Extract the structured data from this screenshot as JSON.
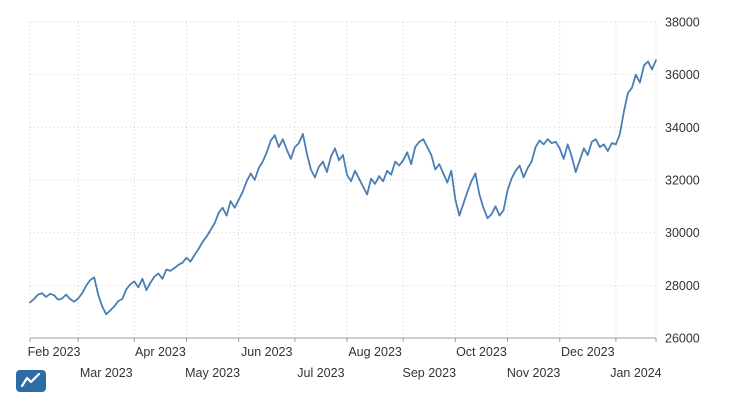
{
  "chart_data": {
    "type": "line",
    "title": "",
    "xlabel": "",
    "ylabel": "",
    "grid": "dotted",
    "legend_position": "none",
    "ylim": [
      26000,
      38000
    ],
    "y_ticks": [
      26000,
      28000,
      30000,
      32000,
      34000,
      36000,
      38000
    ],
    "x_categories_months": [
      "Feb 2023",
      "Mar 2023",
      "Apr 2023",
      "May 2023",
      "Jun 2023",
      "Jul 2023",
      "Aug 2023",
      "Sep 2023",
      "Oct 2023",
      "Nov 2023",
      "Dec 2023",
      "Jan 2024"
    ],
    "x_label_rows": [
      1,
      2,
      1,
      2,
      1,
      2,
      1,
      2,
      1,
      2,
      1,
      2
    ],
    "month_point_offsets": [
      0,
      12,
      26,
      39,
      52,
      66,
      79,
      93,
      106,
      119,
      132,
      146
    ],
    "values": [
      27350,
      27480,
      27650,
      27700,
      27560,
      27680,
      27620,
      27460,
      27500,
      27650,
      27480,
      27380,
      27500,
      27700,
      27990,
      28200,
      28300,
      27650,
      27200,
      26900,
      27050,
      27200,
      27400,
      27480,
      27850,
      28040,
      28150,
      27920,
      28250,
      27820,
      28100,
      28330,
      28450,
      28250,
      28600,
      28550,
      28660,
      28780,
      28860,
      29050,
      28900,
      29150,
      29380,
      29650,
      29850,
      30100,
      30350,
      30750,
      30950,
      30650,
      31200,
      30950,
      31250,
      31550,
      31950,
      32250,
      32000,
      32450,
      32700,
      33050,
      33500,
      33700,
      33250,
      33550,
      33150,
      32800,
      33250,
      33400,
      33750,
      33000,
      32400,
      32100,
      32500,
      32700,
      32300,
      32900,
      33200,
      32750,
      32950,
      32200,
      31950,
      32350,
      32050,
      31750,
      31450,
      32050,
      31850,
      32150,
      31950,
      32350,
      32200,
      32700,
      32550,
      32750,
      33050,
      32600,
      33250,
      33450,
      33550,
      33250,
      32950,
      32400,
      32600,
      32250,
      31900,
      32350,
      31250,
      30650,
      31100,
      31550,
      31950,
      32250,
      31450,
      30950,
      30550,
      30700,
      31000,
      30650,
      30850,
      31600,
      32050,
      32350,
      32550,
      32100,
      32450,
      32700,
      33250,
      33500,
      33350,
      33550,
      33400,
      33450,
      33200,
      32800,
      33350,
      32900,
      32300,
      32750,
      33200,
      32950,
      33450,
      33550,
      33250,
      33350,
      33100,
      33400,
      33350,
      33750,
      34600,
      35300,
      35500,
      36000,
      35700,
      36350,
      36500,
      36200,
      36550
    ],
    "line_color": "#4a7eb5",
    "grid_color": "#cfcfcf",
    "axis_line_color": "#9e9e9e",
    "axis_text_color": "#333333"
  },
  "logo": {
    "bg_color": "#2e6ca8",
    "mark_color": "#ffffff"
  }
}
